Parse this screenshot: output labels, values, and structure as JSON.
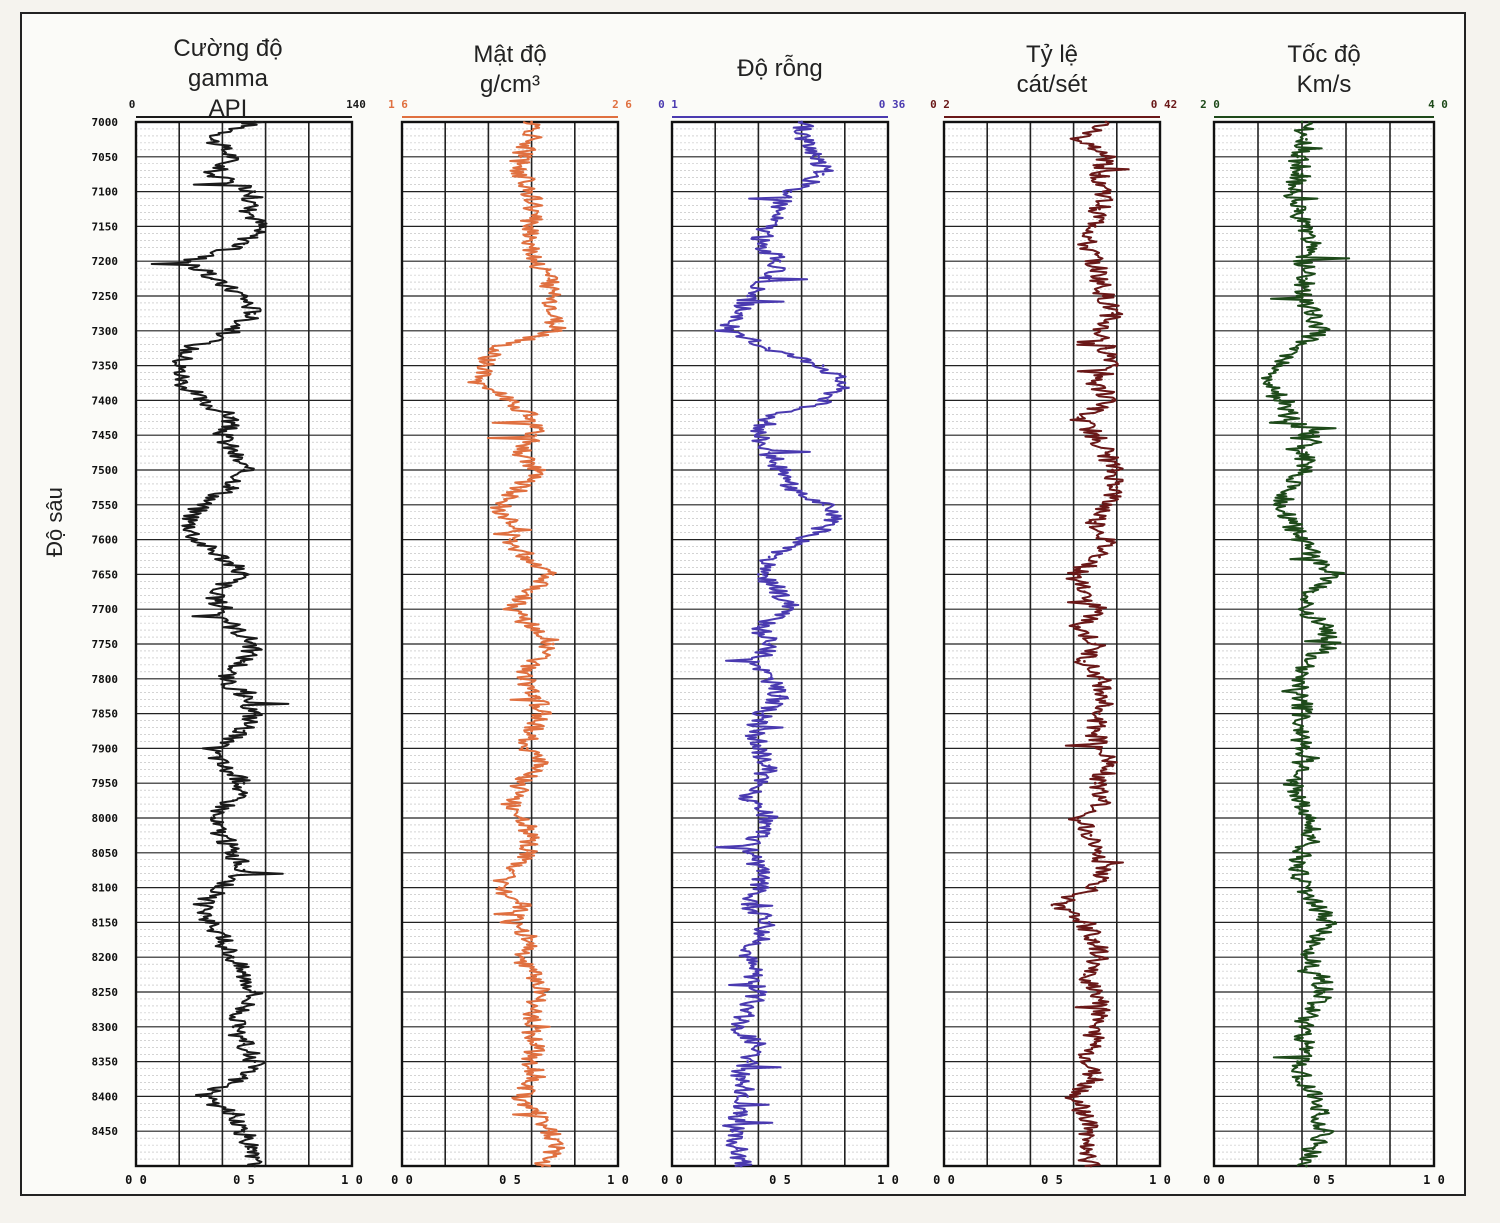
{
  "chart_data": {
    "type": "line",
    "y_axis": {
      "label": "Độ sâu",
      "range": [
        7000,
        8500
      ],
      "ticks": [
        7000,
        7050,
        7100,
        7150,
        7200,
        7250,
        7300,
        7350,
        7400,
        7450,
        7500,
        7550,
        7600,
        7650,
        7700,
        7750,
        7800,
        7850,
        7900,
        7950,
        8000,
        8050,
        8100,
        8150,
        8200,
        8250,
        8300,
        8350,
        8400,
        8450
      ],
      "tick_labels": [
        "7000",
        "7050",
        "7100",
        "7150",
        "7200",
        "7250",
        "7300",
        "7350",
        "7400",
        "7450",
        "7500",
        "7550",
        "7600",
        "7650",
        "7700",
        "7750",
        "7800",
        "7850",
        "7900",
        "7950",
        "8000",
        "8050",
        "8100",
        "8150",
        "8200",
        "8250",
        "8300",
        "8350",
        "8400",
        "8450"
      ]
    },
    "bottom_axis": {
      "range": [
        0,
        1
      ],
      "tick_labels": [
        "0 0",
        "0 5",
        "1 0"
      ]
    },
    "tracks": [
      {
        "title": [
          "Cường độ",
          "gamma",
          "API"
        ],
        "scale_min": "0",
        "scale_max": "140",
        "color": "#1a1a1a",
        "depths": [
          7000,
          7025,
          7050,
          7075,
          7100,
          7125,
          7150,
          7175,
          7200,
          7225,
          7250,
          7275,
          7300,
          7325,
          7350,
          7375,
          7400,
          7425,
          7450,
          7475,
          7500,
          7525,
          7550,
          7575,
          7600,
          7625,
          7650,
          7675,
          7700,
          7725,
          7750,
          7775,
          7800,
          7825,
          7850,
          7875,
          7900,
          7925,
          7950,
          7975,
          8000,
          8025,
          8050,
          8075,
          8100,
          8125,
          8150,
          8175,
          8200,
          8225,
          8250,
          8275,
          8300,
          8325,
          8350,
          8375,
          8400,
          8425,
          8450,
          8475,
          8500
        ],
        "values": [
          0.55,
          0.35,
          0.45,
          0.35,
          0.55,
          0.52,
          0.58,
          0.5,
          0.25,
          0.35,
          0.5,
          0.55,
          0.45,
          0.25,
          0.2,
          0.22,
          0.3,
          0.45,
          0.4,
          0.45,
          0.5,
          0.45,
          0.3,
          0.25,
          0.28,
          0.4,
          0.5,
          0.35,
          0.4,
          0.45,
          0.55,
          0.5,
          0.4,
          0.5,
          0.55,
          0.5,
          0.35,
          0.4,
          0.5,
          0.45,
          0.35,
          0.4,
          0.45,
          0.5,
          0.4,
          0.3,
          0.35,
          0.4,
          0.45,
          0.5,
          0.55,
          0.5,
          0.45,
          0.5,
          0.55,
          0.48,
          0.3,
          0.45,
          0.5,
          0.52,
          0.55
        ]
      },
      {
        "title": [
          "Mật độ",
          "g/cm³"
        ],
        "scale_min": "1 6",
        "scale_max": "2 6",
        "color": "#e07040",
        "depths": [
          7000,
          7025,
          7050,
          7075,
          7100,
          7125,
          7150,
          7175,
          7200,
          7225,
          7250,
          7275,
          7300,
          7325,
          7350,
          7375,
          7400,
          7425,
          7450,
          7475,
          7500,
          7525,
          7550,
          7575,
          7600,
          7625,
          7650,
          7675,
          7700,
          7725,
          7750,
          7775,
          7800,
          7825,
          7850,
          7875,
          7900,
          7925,
          7950,
          7975,
          8000,
          8025,
          8050,
          8075,
          8100,
          8125,
          8150,
          8175,
          8200,
          8225,
          8250,
          8275,
          8300,
          8325,
          8350,
          8375,
          8400,
          8425,
          8450,
          8475,
          8500
        ],
        "values": [
          0.6,
          0.6,
          0.55,
          0.55,
          0.6,
          0.6,
          0.6,
          0.6,
          0.62,
          0.68,
          0.7,
          0.68,
          0.72,
          0.42,
          0.38,
          0.35,
          0.5,
          0.6,
          0.62,
          0.55,
          0.62,
          0.55,
          0.45,
          0.5,
          0.5,
          0.58,
          0.7,
          0.6,
          0.5,
          0.6,
          0.7,
          0.6,
          0.55,
          0.62,
          0.65,
          0.6,
          0.58,
          0.65,
          0.55,
          0.5,
          0.55,
          0.6,
          0.58,
          0.5,
          0.45,
          0.55,
          0.5,
          0.6,
          0.55,
          0.6,
          0.65,
          0.6,
          0.6,
          0.62,
          0.6,
          0.62,
          0.55,
          0.62,
          0.68,
          0.72,
          0.65
        ]
      },
      {
        "title": [
          "Độ rỗng"
        ],
        "scale_min": "0 1",
        "scale_max": "0 36",
        "color": "#4a3ab0",
        "depths": [
          7000,
          7025,
          7050,
          7075,
          7100,
          7125,
          7150,
          7175,
          7200,
          7225,
          7250,
          7275,
          7300,
          7325,
          7350,
          7375,
          7400,
          7425,
          7450,
          7475,
          7500,
          7525,
          7550,
          7575,
          7600,
          7625,
          7650,
          7675,
          7700,
          7725,
          7750,
          7775,
          7800,
          7825,
          7850,
          7875,
          7900,
          7925,
          7950,
          7975,
          8000,
          8025,
          8050,
          8075,
          8100,
          8125,
          8150,
          8175,
          8200,
          8225,
          8250,
          8275,
          8300,
          8325,
          8350,
          8375,
          8400,
          8425,
          8450,
          8475,
          8500
        ],
        "values": [
          0.6,
          0.62,
          0.68,
          0.7,
          0.55,
          0.5,
          0.45,
          0.4,
          0.5,
          0.45,
          0.35,
          0.32,
          0.25,
          0.45,
          0.7,
          0.8,
          0.72,
          0.45,
          0.4,
          0.45,
          0.5,
          0.55,
          0.7,
          0.75,
          0.6,
          0.45,
          0.4,
          0.5,
          0.55,
          0.4,
          0.45,
          0.4,
          0.45,
          0.5,
          0.42,
          0.38,
          0.4,
          0.45,
          0.4,
          0.35,
          0.45,
          0.4,
          0.35,
          0.42,
          0.4,
          0.35,
          0.45,
          0.4,
          0.35,
          0.38,
          0.4,
          0.35,
          0.3,
          0.4,
          0.35,
          0.3,
          0.35,
          0.3,
          0.28,
          0.3,
          0.32
        ]
      },
      {
        "title": [
          "Tỷ lệ",
          "cát/sét"
        ],
        "scale_min": "0 2",
        "scale_max": "0 42",
        "color": "#6a1818",
        "depths": [
          7000,
          7025,
          7050,
          7075,
          7100,
          7125,
          7150,
          7175,
          7200,
          7225,
          7250,
          7275,
          7300,
          7325,
          7350,
          7375,
          7400,
          7425,
          7450,
          7475,
          7500,
          7525,
          7550,
          7575,
          7600,
          7625,
          7650,
          7675,
          7700,
          7725,
          7750,
          7775,
          7800,
          7825,
          7850,
          7875,
          7900,
          7925,
          7950,
          7975,
          8000,
          8025,
          8050,
          8075,
          8100,
          8125,
          8150,
          8175,
          8200,
          8225,
          8250,
          8275,
          8300,
          8325,
          8350,
          8375,
          8400,
          8425,
          8450,
          8475,
          8500
        ],
        "values": [
          0.75,
          0.62,
          0.75,
          0.72,
          0.75,
          0.72,
          0.7,
          0.65,
          0.7,
          0.72,
          0.74,
          0.78,
          0.72,
          0.75,
          0.8,
          0.7,
          0.78,
          0.62,
          0.7,
          0.75,
          0.78,
          0.8,
          0.75,
          0.7,
          0.75,
          0.72,
          0.6,
          0.65,
          0.72,
          0.62,
          0.7,
          0.65,
          0.72,
          0.75,
          0.72,
          0.7,
          0.72,
          0.78,
          0.7,
          0.75,
          0.62,
          0.68,
          0.72,
          0.75,
          0.7,
          0.5,
          0.65,
          0.7,
          0.72,
          0.65,
          0.72,
          0.75,
          0.68,
          0.7,
          0.65,
          0.7,
          0.6,
          0.65,
          0.68,
          0.65,
          0.68
        ]
      },
      {
        "title": [
          "Tốc độ",
          "Km/s"
        ],
        "scale_min": "2 0",
        "scale_max": "4 0",
        "color": "#1e4a1a",
        "depths": [
          7000,
          7025,
          7050,
          7075,
          7100,
          7125,
          7150,
          7175,
          7200,
          7225,
          7250,
          7275,
          7300,
          7325,
          7350,
          7375,
          7400,
          7425,
          7450,
          7475,
          7500,
          7525,
          7550,
          7575,
          7600,
          7625,
          7650,
          7675,
          7700,
          7725,
          7750,
          7775,
          7800,
          7825,
          7850,
          7875,
          7900,
          7925,
          7950,
          7975,
          8000,
          8025,
          8050,
          8075,
          8100,
          8125,
          8150,
          8175,
          8200,
          8225,
          8250,
          8275,
          8300,
          8325,
          8350,
          8375,
          8400,
          8425,
          8450,
          8475,
          8500
        ],
        "values": [
          0.4,
          0.42,
          0.38,
          0.4,
          0.35,
          0.38,
          0.42,
          0.45,
          0.4,
          0.42,
          0.4,
          0.45,
          0.48,
          0.38,
          0.3,
          0.25,
          0.3,
          0.35,
          0.45,
          0.42,
          0.4,
          0.35,
          0.3,
          0.35,
          0.4,
          0.45,
          0.55,
          0.45,
          0.4,
          0.5,
          0.55,
          0.42,
          0.38,
          0.4,
          0.4,
          0.38,
          0.42,
          0.4,
          0.35,
          0.4,
          0.42,
          0.45,
          0.4,
          0.38,
          0.42,
          0.45,
          0.55,
          0.45,
          0.42,
          0.48,
          0.5,
          0.45,
          0.4,
          0.42,
          0.38,
          0.4,
          0.45,
          0.48,
          0.5,
          0.45,
          0.42
        ]
      }
    ]
  }
}
